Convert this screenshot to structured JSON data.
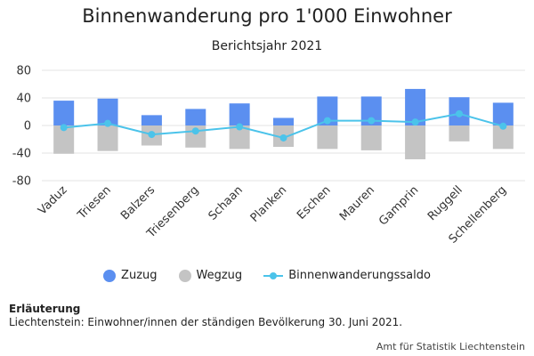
{
  "title": "Binnenwanderung pro 1'000 Einwohner",
  "subtitle": "Berichtsjahr 2021",
  "chart_data": {
    "type": "bar",
    "categories": [
      "Vaduz",
      "Triesen",
      "Balzers",
      "Triesenberg",
      "Schaan",
      "Planken",
      "Eschen",
      "Mauren",
      "Gamprin",
      "Ruggell",
      "Schellenberg"
    ],
    "series": [
      {
        "name": "Zuzug",
        "type": "bar",
        "color": "#5b8ff0",
        "values": [
          36,
          39,
          15,
          24,
          32,
          11,
          42,
          42,
          53,
          41,
          33
        ]
      },
      {
        "name": "Wegzug",
        "type": "bar",
        "color": "#c4c4c4",
        "values": [
          -41,
          -37,
          -29,
          -32,
          -34,
          -31,
          -34,
          -36,
          -49,
          -23,
          -34
        ]
      },
      {
        "name": "Binnenwanderungssaldo",
        "type": "line",
        "color": "#4bc3ea",
        "values": [
          -3,
          3,
          -13,
          -8,
          -2,
          -18,
          7,
          7,
          5,
          17,
          -1
        ]
      }
    ],
    "yticks": [
      80,
      40,
      0,
      -40,
      -80
    ],
    "ylim": [
      -80,
      80
    ],
    "grid": true,
    "legend_position": "bottom"
  },
  "legend": [
    {
      "label": "Zuzug",
      "color": "#5b8ff0"
    },
    {
      "label": "Wegzug",
      "color": "#c4c4c4"
    },
    {
      "label": "Binnenwanderungssaldo",
      "color": "#4bc3ea"
    }
  ],
  "note": {
    "heading": "Erläuterung",
    "text": "Liechtenstein: Einwohner/innen der ständigen Bevölkerung 30. Juni 2021."
  },
  "credit": "Amt für Statistik Liechtenstein"
}
